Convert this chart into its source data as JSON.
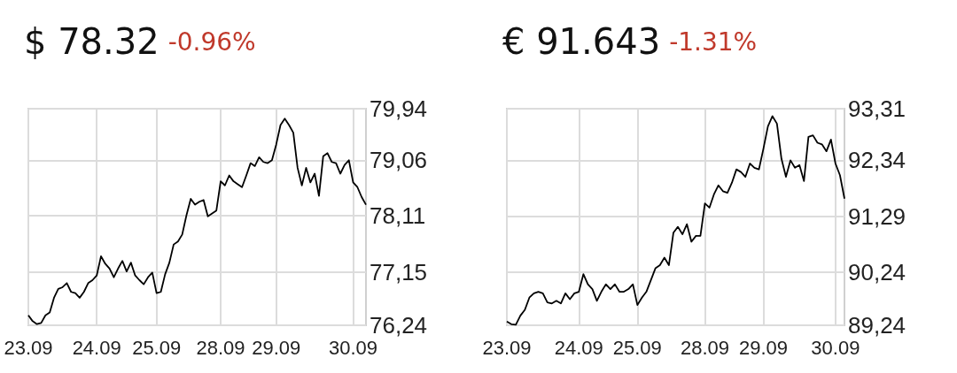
{
  "chart_data": [
    {
      "type": "line",
      "title": "$ 78.32",
      "subtitle": "-0.96%",
      "color": "#000000",
      "grid": true,
      "categories": [
        "23.09",
        null,
        null,
        null,
        null,
        null,
        null,
        null,
        null,
        null,
        null,
        null,
        null,
        null,
        null,
        null,
        "24.09",
        null,
        null,
        null,
        null,
        null,
        null,
        null,
        null,
        null,
        null,
        null,
        null,
        null,
        "25.09",
        null,
        null,
        null,
        null,
        null,
        null,
        null,
        null,
        null,
        null,
        null,
        null,
        null,
        null,
        "28.09",
        null,
        null,
        null,
        null,
        null,
        null,
        null,
        null,
        null,
        null,
        null,
        null,
        "29.09",
        null,
        null,
        null,
        null,
        null,
        null,
        null,
        null,
        null,
        null,
        null,
        null,
        null,
        null,
        null,
        null,
        null,
        "30.09",
        null,
        null,
        null
      ],
      "values": [
        76.41,
        76.31,
        76.26,
        76.28,
        76.41,
        76.46,
        76.71,
        76.86,
        76.89,
        76.96,
        76.81,
        76.79,
        76.71,
        76.81,
        76.96,
        77.01,
        77.09,
        77.42,
        77.29,
        77.21,
        77.06,
        77.21,
        77.34,
        77.16,
        77.31,
        77.09,
        77.01,
        76.94,
        77.06,
        77.14,
        76.79,
        76.81,
        77.11,
        77.31,
        77.62,
        77.67,
        77.79,
        78.12,
        78.4,
        78.3,
        78.35,
        78.38,
        78.1,
        78.15,
        78.2,
        78.7,
        78.63,
        78.8,
        78.7,
        78.65,
        78.6,
        78.8,
        79.01,
        78.96,
        79.11,
        79.03,
        79.01,
        79.06,
        79.33,
        79.66,
        79.77,
        79.66,
        79.53,
        78.93,
        78.63,
        78.93,
        78.68,
        78.83,
        78.45,
        79.13,
        79.18,
        79.03,
        79.01,
        78.83,
        78.98,
        79.06,
        78.68,
        78.6,
        78.43,
        78.3
      ],
      "ylim": [
        76.24,
        79.94
      ],
      "yticks": [
        {
          "value": 76.24,
          "label": "76,24"
        },
        {
          "value": 77.15,
          "label": "77,15"
        },
        {
          "value": 78.11,
          "label": "78,11"
        },
        {
          "value": 79.06,
          "label": "79,06"
        },
        {
          "value": 79.94,
          "label": "79,94"
        }
      ]
    },
    {
      "type": "line",
      "title": "€ 91.643",
      "subtitle": "-1.31%",
      "color": "#000000",
      "grid": true,
      "categories": [
        "23.09",
        null,
        null,
        null,
        null,
        null,
        null,
        null,
        null,
        null,
        null,
        null,
        null,
        null,
        null,
        null,
        "24.09",
        null,
        null,
        null,
        null,
        null,
        null,
        null,
        null,
        null,
        null,
        null,
        null,
        "25.09",
        null,
        null,
        null,
        null,
        null,
        null,
        null,
        null,
        null,
        null,
        null,
        null,
        null,
        null,
        "28.09",
        null,
        null,
        null,
        null,
        null,
        null,
        null,
        null,
        null,
        null,
        null,
        null,
        "29.09",
        null,
        null,
        null,
        null,
        null,
        null,
        null,
        null,
        null,
        null,
        null,
        null,
        null,
        null,
        null,
        "30.09",
        null,
        null
      ],
      "values": [
        89.31,
        89.26,
        89.25,
        89.42,
        89.53,
        89.76,
        89.84,
        89.87,
        89.84,
        89.67,
        89.65,
        89.7,
        89.65,
        89.84,
        89.73,
        89.84,
        89.87,
        90.2,
        90.01,
        89.92,
        89.7,
        89.87,
        90.01,
        89.92,
        90.01,
        89.87,
        89.87,
        89.92,
        90.01,
        89.62,
        89.76,
        89.87,
        90.09,
        90.31,
        90.37,
        90.51,
        90.37,
        90.98,
        91.09,
        90.95,
        91.14,
        90.81,
        90.92,
        90.92,
        91.53,
        91.45,
        91.7,
        91.87,
        91.76,
        91.73,
        91.92,
        92.17,
        92.12,
        92.03,
        92.28,
        92.2,
        92.17,
        92.56,
        92.98,
        93.17,
        93.03,
        92.37,
        92.03,
        92.34,
        92.2,
        92.25,
        91.95,
        92.78,
        92.81,
        92.67,
        92.64,
        92.51,
        92.73,
        92.28,
        92.06,
        91.62
      ],
      "ylim": [
        89.24,
        93.31
      ],
      "yticks": [
        {
          "value": 89.24,
          "label": "89,24"
        },
        {
          "value": 90.24,
          "label": "90,24"
        },
        {
          "value": 91.29,
          "label": "91,29"
        },
        {
          "value": 92.34,
          "label": "92,34"
        },
        {
          "value": 93.31,
          "label": "93,31"
        }
      ]
    }
  ]
}
